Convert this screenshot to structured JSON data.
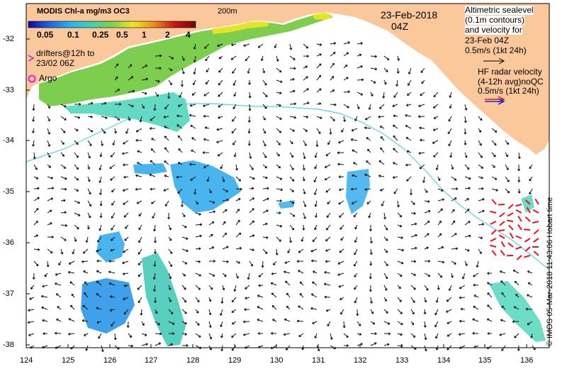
{
  "colorbar": {
    "title": "MODIS Chl-a mg/m3 OC3",
    "ticks": [
      "0.05",
      "0.1",
      "0.25",
      "0.5",
      "1",
      "2",
      "4"
    ],
    "colors": [
      "#0a0aa0",
      "#1e64e6",
      "#28b4f0",
      "#3cd2b4",
      "#7ad24a",
      "#f0e628",
      "#f08c1e",
      "#c8141e",
      "#6e0a0a"
    ]
  },
  "labels": {
    "isobath": "200m",
    "date": "23-Feb-2018",
    "time": "04Z",
    "drifters_line1": "drifters@12h to",
    "drifters_line2": "23/02 06Z",
    "argo": "Argo"
  },
  "altimetry_legend": {
    "line1": "Altimetric sealevel",
    "line2": "(0.1m contours)",
    "line3": "and velocity for",
    "line4": "23-Feb 04Z",
    "scale": "0.5m/s (1kt 24h)"
  },
  "hf_legend": {
    "line1": "HF radar velocity",
    "line2": "(4-12h avg)noQC",
    "scale": "0.5m/s (1kt 24h)"
  },
  "axes": {
    "x_ticks": [
      "124",
      "125",
      "126",
      "127",
      "128",
      "129",
      "130",
      "131",
      "132",
      "133",
      "134",
      "135",
      "136"
    ],
    "y_ticks": [
      "-32",
      "-33",
      "-34",
      "-35",
      "-36",
      "-37",
      "-38"
    ]
  },
  "credit": "© IMOS 05-Mar-2018 11:43:06 Hobart time",
  "map_colors": {
    "land": "#fac89a",
    "ocean": "#ffffff",
    "isobath": "#5ad2dc",
    "hf_arrows": "#e6141e"
  }
}
